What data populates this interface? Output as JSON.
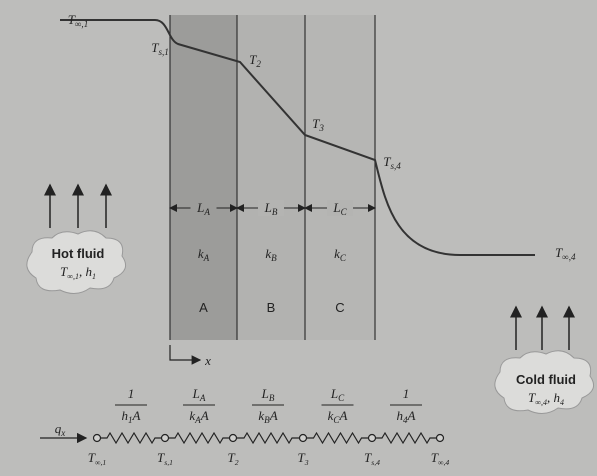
{
  "profile_labels": [
    {
      "symbol": "T",
      "sub": "∞,1"
    },
    {
      "symbol": "T",
      "sub": "s,1"
    },
    {
      "symbol": "T",
      "sub": "2"
    },
    {
      "symbol": "T",
      "sub": "3"
    },
    {
      "symbol": "T",
      "sub": "s,4"
    },
    {
      "symbol": "T",
      "sub": "∞,4"
    }
  ],
  "layers": [
    {
      "length": {
        "symbol": "L",
        "sub": "A"
      },
      "conductivity": {
        "symbol": "k",
        "sub": "A"
      },
      "name": "A"
    },
    {
      "length": {
        "symbol": "L",
        "sub": "B"
      },
      "conductivity": {
        "symbol": "k",
        "sub": "B"
      },
      "name": "B"
    },
    {
      "length": {
        "symbol": "L",
        "sub": "C"
      },
      "conductivity": {
        "symbol": "k",
        "sub": "C"
      },
      "name": "C"
    }
  ],
  "axis_label": "x",
  "hot_fluid": {
    "title": "Hot fluid",
    "temperature": {
      "symbol": "T",
      "sub": "∞,1"
    },
    "coefficient": {
      "symbol": "h",
      "sub": "1"
    }
  },
  "cold_fluid": {
    "title": "Cold fluid",
    "temperature": {
      "symbol": "T",
      "sub": "∞,4"
    },
    "coefficient": {
      "symbol": "h",
      "sub": "4"
    }
  },
  "heat_rate": {
    "symbol": "q",
    "sub": "x"
  },
  "resistances": [
    {
      "numerator": "1",
      "denominator": {
        "symbol": "h",
        "sub": "1",
        "suffix": "A"
      }
    },
    {
      "numerator": {
        "symbol": "L",
        "sub": "A"
      },
      "denominator": {
        "symbol": "k",
        "sub": "A",
        "suffix": "A"
      }
    },
    {
      "numerator": {
        "symbol": "L",
        "sub": "B"
      },
      "denominator": {
        "symbol": "k",
        "sub": "B",
        "suffix": "A"
      }
    },
    {
      "numerator": {
        "symbol": "L",
        "sub": "C"
      },
      "denominator": {
        "symbol": "k",
        "sub": "C",
        "suffix": "A"
      }
    },
    {
      "numerator": "1",
      "denominator": {
        "symbol": "h",
        "sub": "4",
        "suffix": "A"
      }
    }
  ],
  "circuit_nodes": [
    {
      "symbol": "T",
      "sub": "∞,1"
    },
    {
      "symbol": "T",
      "sub": "s,1"
    },
    {
      "symbol": "T",
      "sub": "2"
    },
    {
      "symbol": "T",
      "sub": "3"
    },
    {
      "symbol": "T",
      "sub": "s,4"
    },
    {
      "symbol": "T",
      "sub": "∞,4"
    }
  ]
}
